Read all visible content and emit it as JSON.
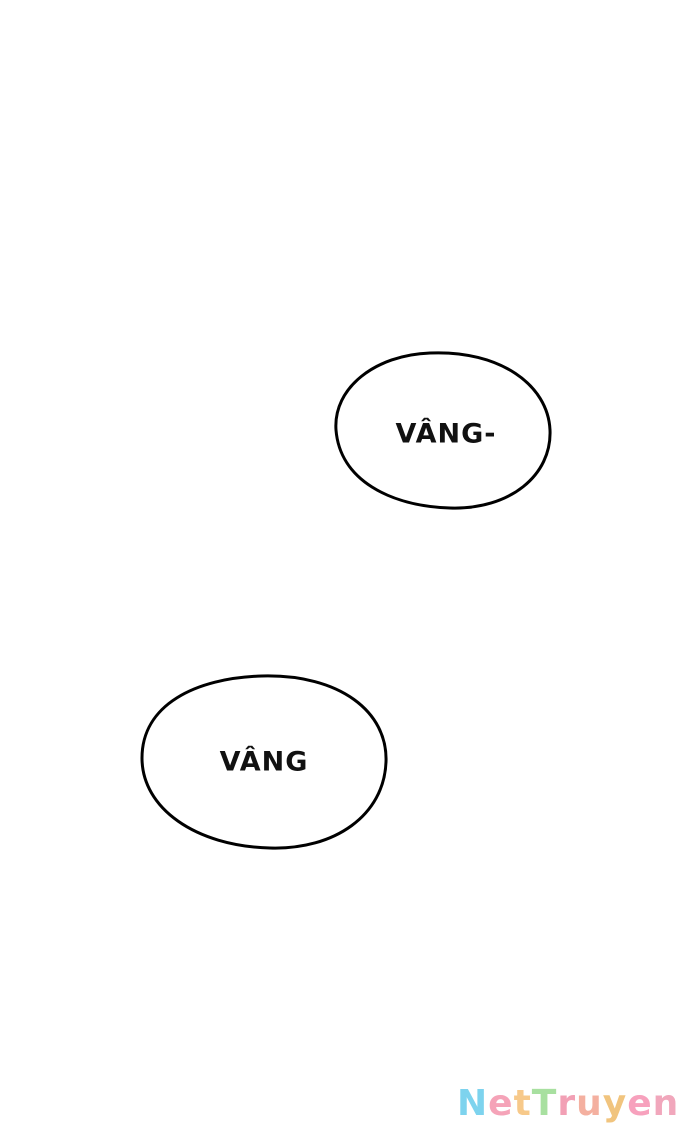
{
  "bubbles": [
    {
      "text": "VÂNG-"
    },
    {
      "text": "VÂNG"
    }
  ],
  "watermark": {
    "letters": [
      "N",
      "e",
      "t",
      "T",
      "r",
      "u",
      "y",
      "e",
      "n"
    ],
    "colors": [
      "#7dd3ee",
      "#f5a3b8",
      "#f7c98a",
      "#a8e0a0",
      "#f2a0b5",
      "#f4b0a0",
      "#f1c47e",
      "#f7a1bd",
      "#f1a7bc"
    ]
  }
}
